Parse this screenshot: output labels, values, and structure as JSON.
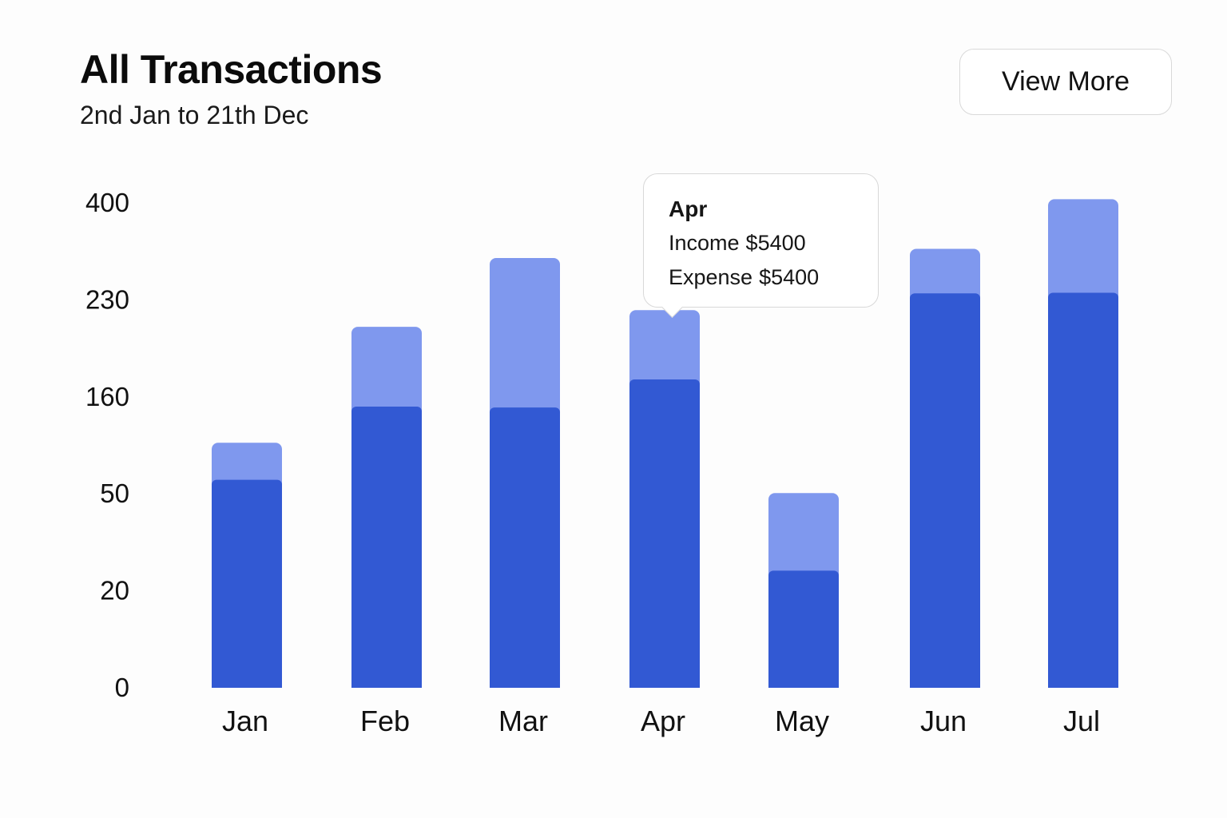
{
  "header": {
    "title": "All Transactions",
    "subtitle": "2nd Jan to 21th Dec",
    "view_more_label": "View More"
  },
  "tooltip": {
    "month": "Apr",
    "income_label": "Income",
    "income_value": "$5400",
    "expense_label": "Expense",
    "expense_value": "$5400"
  },
  "colors": {
    "lower_segment": "#3259d3",
    "upper_segment": "#7f98ee"
  },
  "chart_data": {
    "type": "bar",
    "stacked": true,
    "categories": [
      "Jan",
      "Feb",
      "Mar",
      "Apr",
      "May",
      "Jun",
      "Jul"
    ],
    "y_ticks": [
      400,
      230,
      160,
      50,
      20,
      0
    ],
    "series": [
      {
        "values": [
          65,
          148,
          147,
          172,
          26,
          240,
          241
        ]
      },
      {
        "values": [
          42,
          62,
          155,
          50,
          24,
          78,
          164
        ]
      }
    ],
    "title": "All Transactions",
    "xlabel": "",
    "ylabel": "",
    "grid": false,
    "legend": "none"
  }
}
